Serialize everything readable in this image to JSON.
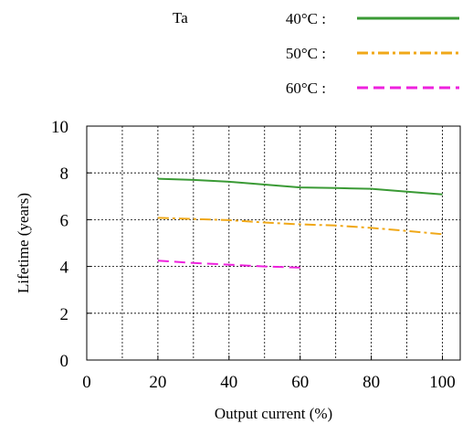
{
  "chart_data": {
    "type": "line",
    "title": "",
    "xlabel": "Output current (%)",
    "ylabel": "Lifetime (years)",
    "xlim": [
      0,
      105
    ],
    "ylim": [
      0,
      10
    ],
    "x_ticks": [
      0,
      20,
      40,
      60,
      80,
      100
    ],
    "y_ticks": [
      0,
      2,
      4,
      6,
      8,
      10
    ],
    "grid": true,
    "legend": {
      "title": "Ta",
      "placement": "top-right, above plot"
    },
    "series": [
      {
        "name": "40°C :",
        "color": "#3a9a35",
        "style": "solid",
        "x": [
          20,
          30,
          40,
          50,
          60,
          70,
          80,
          90,
          100
        ],
        "y": [
          7.75,
          7.7,
          7.62,
          7.5,
          7.38,
          7.35,
          7.32,
          7.2,
          7.08
        ]
      },
      {
        "name": "50°C :",
        "color": "#f0a818",
        "style": "dash-dot",
        "x": [
          20,
          30,
          40,
          50,
          60,
          70,
          80,
          90,
          100
        ],
        "y": [
          6.08,
          6.03,
          5.98,
          5.88,
          5.8,
          5.75,
          5.65,
          5.52,
          5.38
        ]
      },
      {
        "name": "60°C :",
        "color": "#ee22dd",
        "style": "dashed",
        "x": [
          20,
          30,
          40,
          50,
          60
        ],
        "y": [
          4.25,
          4.15,
          4.08,
          4.0,
          3.95
        ]
      }
    ]
  }
}
